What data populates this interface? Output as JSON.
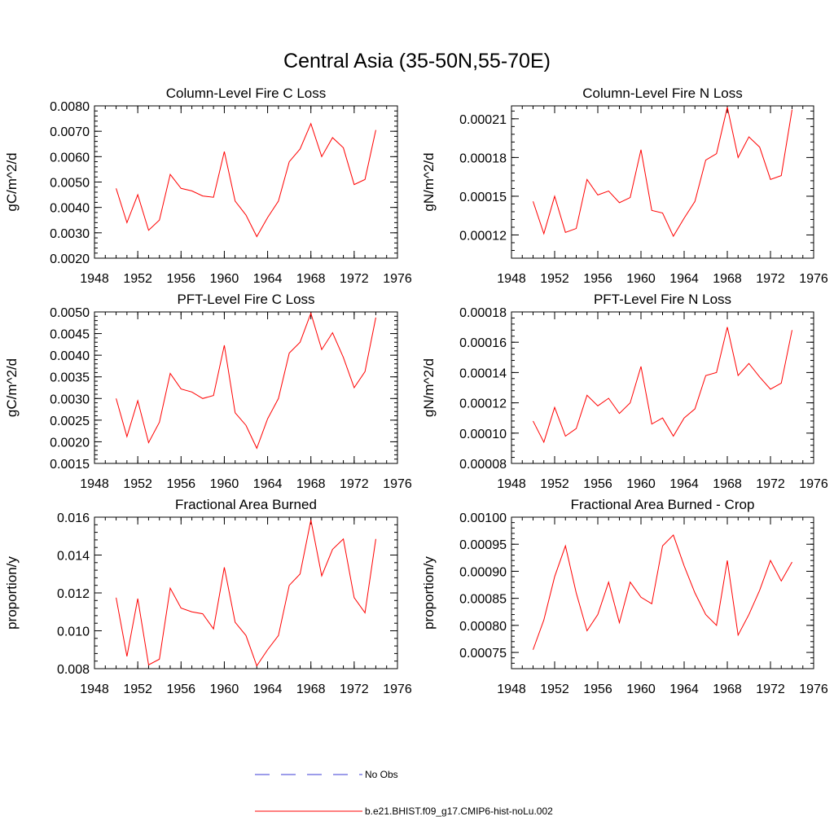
{
  "figure": {
    "title": "Central Asia (35-50N,55-70E)"
  },
  "legend": {
    "entries": [
      {
        "label": "No Obs",
        "color": "#3b3bd6",
        "style": "dashed"
      },
      {
        "label": "b.e21.BHIST.f09_g17.CMIP6-hist-noLu.002",
        "color": "#ff0000",
        "style": "solid"
      }
    ]
  },
  "chart_data": [
    {
      "type": "line",
      "title": "Column-Level Fire C Loss",
      "ylabel": "gC/m^2/d",
      "xlim": [
        1948,
        1976
      ],
      "ylim": [
        0.002,
        0.008
      ],
      "xticks": [
        1948,
        1952,
        1956,
        1960,
        1964,
        1968,
        1972,
        1976
      ],
      "xtick_labels": [
        "1948",
        "1952",
        "1956",
        "1960",
        "1964",
        "1968",
        "1972",
        "1976"
      ],
      "yticks": [
        0.002,
        0.003,
        0.004,
        0.005,
        0.006,
        0.007,
        0.008
      ],
      "ytick_labels": [
        "0.0020",
        "0.0030",
        "0.0040",
        "0.0050",
        "0.0060",
        "0.0070",
        "0.0080"
      ],
      "x": [
        1950,
        1951,
        1952,
        1953,
        1954,
        1955,
        1956,
        1957,
        1958,
        1959,
        1960,
        1961,
        1962,
        1963,
        1964,
        1965,
        1966,
        1967,
        1968,
        1969,
        1970,
        1971,
        1972,
        1973,
        1974
      ],
      "series": [
        {
          "color": "#ff0000",
          "values": [
            0.00475,
            0.0034,
            0.0045,
            0.0031,
            0.0035,
            0.0053,
            0.00475,
            0.00465,
            0.00445,
            0.0044,
            0.0062,
            0.00425,
            0.0037,
            0.00285,
            0.0036,
            0.00425,
            0.0058,
            0.0063,
            0.0073,
            0.006,
            0.00675,
            0.00635,
            0.0049,
            0.0051,
            0.00705
          ]
        }
      ]
    },
    {
      "type": "line",
      "title": "Column-Level Fire N Loss",
      "ylabel": "gN/m^2/d",
      "xlim": [
        1948,
        1976
      ],
      "ylim": [
        0.000102,
        0.00022
      ],
      "xticks": [
        1948,
        1952,
        1956,
        1960,
        1964,
        1968,
        1972,
        1976
      ],
      "xtick_labels": [
        "1948",
        "1952",
        "1956",
        "1960",
        "1964",
        "1968",
        "1972",
        "1976"
      ],
      "yticks": [
        0.00012,
        0.00015,
        0.00018,
        0.00021
      ],
      "ytick_labels": [
        "0.00012",
        "0.00015",
        "0.00018",
        "0.00021"
      ],
      "x": [
        1950,
        1951,
        1952,
        1953,
        1954,
        1955,
        1956,
        1957,
        1958,
        1959,
        1960,
        1961,
        1962,
        1963,
        1964,
        1965,
        1966,
        1967,
        1968,
        1969,
        1970,
        1971,
        1972,
        1973,
        1974
      ],
      "series": [
        {
          "color": "#ff0000",
          "values": [
            0.000146,
            0.000121,
            0.00015,
            0.000122,
            0.000125,
            0.000163,
            0.000151,
            0.000154,
            0.000145,
            0.000149,
            0.000186,
            0.000139,
            0.000137,
            0.000119,
            0.000133,
            0.000146,
            0.000178,
            0.000183,
            0.000219,
            0.00018,
            0.000196,
            0.000188,
            0.000163,
            0.000166,
            0.000217
          ]
        }
      ]
    },
    {
      "type": "line",
      "title": "PFT-Level Fire C Loss",
      "ylabel": "gC/m^2/d",
      "xlim": [
        1948,
        1976
      ],
      "ylim": [
        0.0015,
        0.005
      ],
      "xticks": [
        1948,
        1952,
        1956,
        1960,
        1964,
        1968,
        1972,
        1976
      ],
      "xtick_labels": [
        "1948",
        "1952",
        "1956",
        "1960",
        "1964",
        "1968",
        "1972",
        "1976"
      ],
      "yticks": [
        0.0015,
        0.002,
        0.0025,
        0.003,
        0.0035,
        0.004,
        0.0045,
        0.005
      ],
      "ytick_labels": [
        "0.0015",
        "0.0020",
        "0.0025",
        "0.0030",
        "0.0035",
        "0.0040",
        "0.0045",
        "0.0050"
      ],
      "x": [
        1950,
        1951,
        1952,
        1953,
        1954,
        1955,
        1956,
        1957,
        1958,
        1959,
        1960,
        1961,
        1962,
        1963,
        1964,
        1965,
        1966,
        1967,
        1968,
        1969,
        1970,
        1971,
        1972,
        1973,
        1974
      ],
      "series": [
        {
          "color": "#ff0000",
          "values": [
            0.003,
            0.00212,
            0.00295,
            0.00198,
            0.00245,
            0.00358,
            0.00322,
            0.00315,
            0.003,
            0.00307,
            0.00423,
            0.00267,
            0.00238,
            0.00185,
            0.00253,
            0.003,
            0.00405,
            0.0043,
            0.00497,
            0.00413,
            0.00452,
            0.00395,
            0.00325,
            0.00362,
            0.00487
          ]
        }
      ]
    },
    {
      "type": "line",
      "title": "PFT-Level Fire N Loss",
      "ylabel": "gN/m^2/d",
      "xlim": [
        1948,
        1976
      ],
      "ylim": [
        8e-05,
        0.00018
      ],
      "xticks": [
        1948,
        1952,
        1956,
        1960,
        1964,
        1968,
        1972,
        1976
      ],
      "xtick_labels": [
        "1948",
        "1952",
        "1956",
        "1960",
        "1964",
        "1968",
        "1972",
        "1976"
      ],
      "yticks": [
        8e-05,
        0.0001,
        0.00012,
        0.00014,
        0.00016,
        0.00018
      ],
      "ytick_labels": [
        "0.00008",
        "0.00010",
        "0.00012",
        "0.00014",
        "0.00016",
        "0.00018"
      ],
      "x": [
        1950,
        1951,
        1952,
        1953,
        1954,
        1955,
        1956,
        1957,
        1958,
        1959,
        1960,
        1961,
        1962,
        1963,
        1964,
        1965,
        1966,
        1967,
        1968,
        1969,
        1970,
        1971,
        1972,
        1973,
        1974
      ],
      "series": [
        {
          "color": "#ff0000",
          "values": [
            0.000108,
            9.4e-05,
            0.000117,
            9.8e-05,
            0.000103,
            0.000125,
            0.000118,
            0.000123,
            0.000113,
            0.00012,
            0.000144,
            0.000106,
            0.00011,
            9.8e-05,
            0.00011,
            0.000116,
            0.000138,
            0.00014,
            0.00017,
            0.000138,
            0.000146,
            0.000137,
            0.000129,
            0.000133,
            0.000168
          ]
        }
      ]
    },
    {
      "type": "line",
      "title": "Fractional Area Burned",
      "ylabel": "proportion/y",
      "xlim": [
        1948,
        1976
      ],
      "ylim": [
        0.008,
        0.016
      ],
      "xticks": [
        1948,
        1952,
        1956,
        1960,
        1964,
        1968,
        1972,
        1976
      ],
      "xtick_labels": [
        "1948",
        "1952",
        "1956",
        "1960",
        "1964",
        "1968",
        "1972",
        "1976"
      ],
      "yticks": [
        0.008,
        0.01,
        0.012,
        0.014,
        0.016
      ],
      "ytick_labels": [
        "0.008",
        "0.010",
        "0.012",
        "0.014",
        "0.016"
      ],
      "x": [
        1950,
        1951,
        1952,
        1953,
        1954,
        1955,
        1956,
        1957,
        1958,
        1959,
        1960,
        1961,
        1962,
        1963,
        1964,
        1965,
        1966,
        1967,
        1968,
        1969,
        1970,
        1971,
        1972,
        1973,
        1974
      ],
      "series": [
        {
          "color": "#ff0000",
          "values": [
            0.01175,
            0.00865,
            0.0117,
            0.0082,
            0.0085,
            0.01225,
            0.0112,
            0.011,
            0.0109,
            0.0101,
            0.01335,
            0.01045,
            0.00975,
            0.00815,
            0.009,
            0.00975,
            0.0124,
            0.013,
            0.01585,
            0.0129,
            0.0143,
            0.01485,
            0.01175,
            0.01095,
            0.01485
          ]
        }
      ]
    },
    {
      "type": "line",
      "title": "Fractional Area Burned - Crop",
      "ylabel": "proportion/y",
      "xlim": [
        1948,
        1976
      ],
      "ylim": [
        0.00072,
        0.001
      ],
      "xticks": [
        1948,
        1952,
        1956,
        1960,
        1964,
        1968,
        1972,
        1976
      ],
      "xtick_labels": [
        "1948",
        "1952",
        "1956",
        "1960",
        "1964",
        "1968",
        "1972",
        "1976"
      ],
      "yticks": [
        0.00075,
        0.0008,
        0.00085,
        0.0009,
        0.00095,
        0.001
      ],
      "ytick_labels": [
        "0.00075",
        "0.00080",
        "0.00085",
        "0.00090",
        "0.00095",
        "0.00100"
      ],
      "x": [
        1950,
        1951,
        1952,
        1953,
        1954,
        1955,
        1956,
        1957,
        1958,
        1959,
        1960,
        1961,
        1962,
        1963,
        1964,
        1965,
        1966,
        1967,
        1968,
        1969,
        1970,
        1971,
        1972,
        1973,
        1974
      ],
      "series": [
        {
          "color": "#ff0000",
          "values": [
            0.000755,
            0.00081,
            0.00089,
            0.000947,
            0.00086,
            0.00079,
            0.00082,
            0.00088,
            0.000805,
            0.00088,
            0.000852,
            0.00084,
            0.000947,
            0.000967,
            0.00091,
            0.00086,
            0.00082,
            0.0008,
            0.00092,
            0.000782,
            0.00082,
            0.000865,
            0.00092,
            0.000882,
            0.000917
          ]
        }
      ]
    }
  ]
}
